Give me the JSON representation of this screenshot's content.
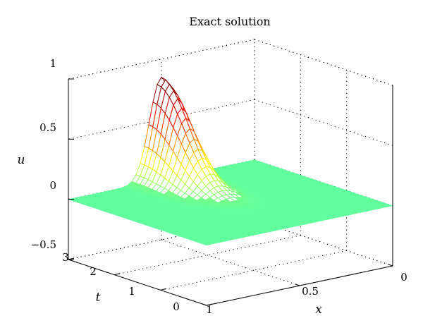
{
  "chart_data": {
    "type": "surface",
    "title": "Exact solution",
    "xlabel": "x",
    "ylabel": "t",
    "zlabel": "u",
    "x_ticks": [
      "0",
      "0.5",
      "1"
    ],
    "t_ticks": [
      "0",
      "1",
      "2",
      "3"
    ],
    "u_ticks": [
      "−0.5",
      "0",
      "0.5",
      "1"
    ],
    "xlim": [
      0,
      1
    ],
    "tlim": [
      0,
      3
    ],
    "ulim": [
      -0.5,
      1
    ],
    "grid": true,
    "colormap": "jet",
    "surface": {
      "description_function": "single gaussian-like pulse",
      "peak_u": 0.85,
      "peak_x": 0.5,
      "peak_t": 3,
      "baseline_u": 0
    }
  }
}
